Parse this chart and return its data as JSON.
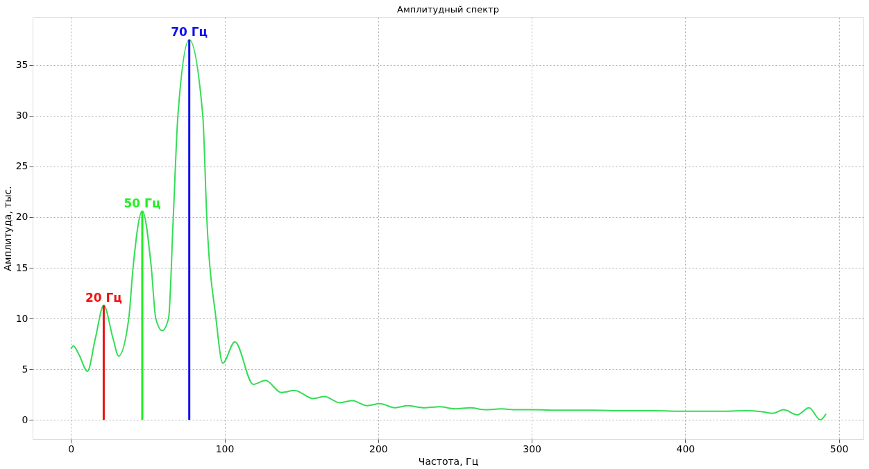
{
  "chart_data": {
    "type": "line",
    "title": "Амплитудный спектр",
    "xlabel": "Частота, Гц",
    "ylabel": "Амплитуда, тыс.",
    "xlim": [
      -25,
      516
    ],
    "ylim": [
      -1.9,
      39.7
    ],
    "xticks": [
      0,
      100,
      200,
      300,
      400,
      500
    ],
    "yticks": [
      0,
      5,
      10,
      15,
      20,
      25,
      30,
      35
    ],
    "grid": true,
    "marker": "none",
    "line_style": "solid",
    "series": [
      {
        "color": "#33dd55",
        "x": [
          0,
          1.5,
          5,
          10.7,
          15.8,
          21.3,
          27.4,
          31,
          37.6,
          40.4,
          46.4,
          52.3,
          55.2,
          59.4,
          63.5,
          66.6,
          69.6,
          77,
          85.8,
          88.4,
          94.4,
          98.8,
          106.7,
          118.7,
          126.6,
          137,
          145.6,
          157.7,
          165,
          175,
          183,
          193,
          201,
          211,
          219,
          230,
          240,
          250,
          260,
          270,
          280,
          290,
          300,
          320,
          340,
          360,
          380,
          400,
          420,
          440,
          450,
          457,
          464,
          473,
          480.5,
          488,
          491.6
        ],
        "values": [
          7.0,
          7.3,
          6.5,
          4.8,
          8.0,
          11.3,
          8.0,
          6.3,
          10,
          15,
          20.6,
          15,
          10,
          8.8,
          10,
          20,
          30,
          37.5,
          30,
          20,
          10,
          5.6,
          7.7,
          3.5,
          3.9,
          2.7,
          2.9,
          2.1,
          2.3,
          1.7,
          1.9,
          1.4,
          1.6,
          1.2,
          1.4,
          1.2,
          1.3,
          1.1,
          1.2,
          1.0,
          1.1,
          1.0,
          1.0,
          0.95,
          0.95,
          0.9,
          0.9,
          0.85,
          0.85,
          0.9,
          0.8,
          0.65,
          1.0,
          0.5,
          1.2,
          0.0,
          0.6
        ]
      },
      {
        "type": "bar",
        "name": "20 Гц",
        "color": "#ee1111",
        "x": [
          21.3
        ],
        "values": [
          11.3
        ]
      },
      {
        "type": "bar",
        "name": "50 Гц",
        "color": "#22ee22",
        "x": [
          46.4
        ],
        "values": [
          20.6
        ]
      },
      {
        "type": "bar",
        "name": "70 Гц",
        "color": "#1111ee",
        "x": [
          77
        ],
        "values": [
          37.5
        ]
      }
    ]
  }
}
